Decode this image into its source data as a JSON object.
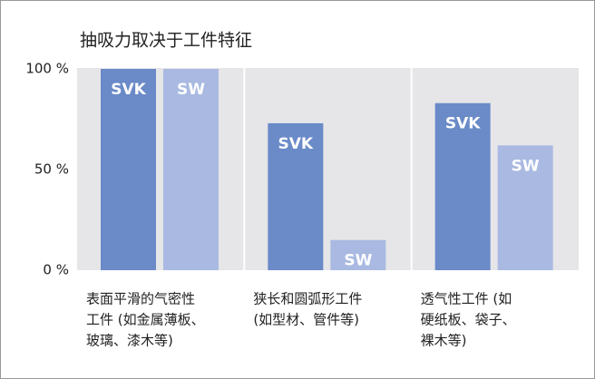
{
  "chart_data": {
    "type": "bar",
    "title": "抽吸力取决于工件特征",
    "categories": [
      [
        "表面平滑的气密性",
        "工件 (如金属薄板、",
        "玻璃、漆木等)"
      ],
      [
        "狭长和圆弧形工件",
        "(如型材、管件等)"
      ],
      [
        "透气性工件 (如",
        "硬纸板、袋子、",
        "裸木等)"
      ]
    ],
    "series": [
      {
        "name": "SVK",
        "color": "#6a8ac8",
        "values": [
          100,
          73,
          83
        ]
      },
      {
        "name": "SW",
        "color": "#a9b9e1",
        "values": [
          100,
          15,
          62
        ]
      }
    ],
    "ylim": [
      0,
      100
    ],
    "yticks": [
      {
        "value": 0,
        "label": "0 %"
      },
      {
        "value": 50,
        "label": "50 %"
      },
      {
        "value": 100,
        "label": "100 %"
      }
    ]
  }
}
